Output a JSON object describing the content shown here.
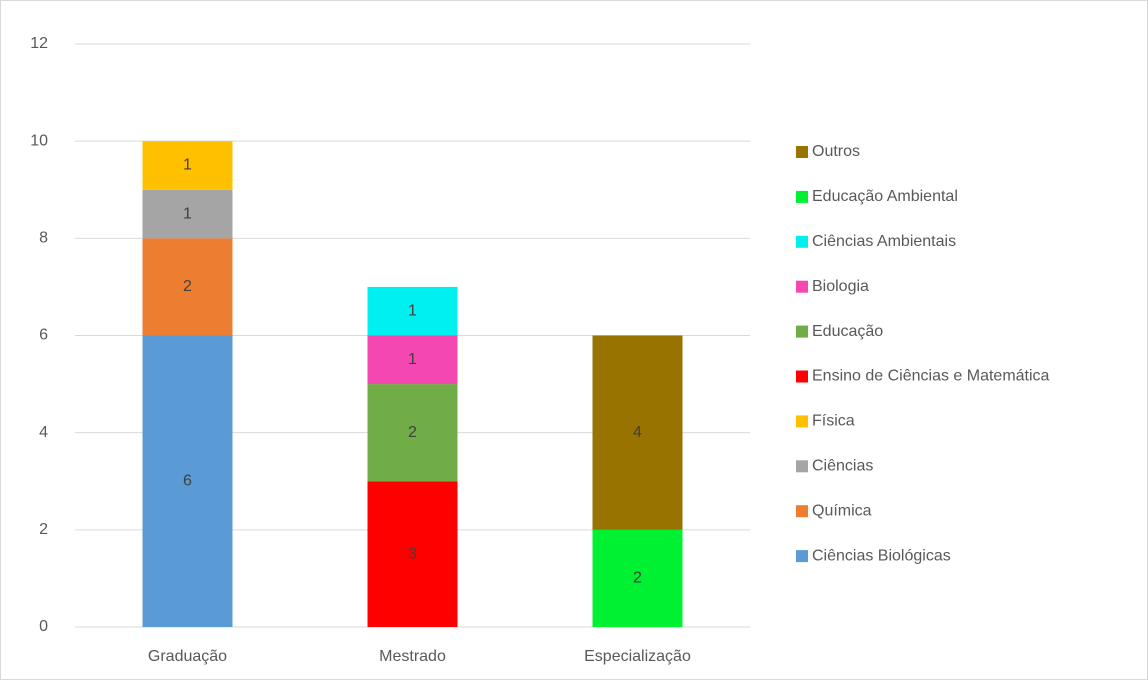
{
  "chart_data": {
    "type": "stacked_bar",
    "categories": [
      "Graduação",
      "Mestrado",
      "Especialização"
    ],
    "series": [
      {
        "name": "Ciências Biológicas",
        "color": "#5b9bd5",
        "values": [
          6,
          null,
          null
        ]
      },
      {
        "name": "Química",
        "color": "#ed7d31",
        "values": [
          2,
          null,
          null
        ]
      },
      {
        "name": "Ciências",
        "color": "#a5a5a5",
        "values": [
          1,
          null,
          null
        ]
      },
      {
        "name": "Física",
        "color": "#ffc000",
        "values": [
          1,
          null,
          null
        ]
      },
      {
        "name": "Ensino de Ciências e Matemática",
        "color": "#ff0000",
        "values": [
          null,
          3,
          null
        ]
      },
      {
        "name": "Educação",
        "color": "#70ad47",
        "values": [
          null,
          2,
          null
        ]
      },
      {
        "name": "Biologia",
        "color": "#f547b2",
        "values": [
          null,
          1,
          null
        ]
      },
      {
        "name": "Ciências Ambientais",
        "color": "#00f0f0",
        "values": [
          null,
          1,
          null
        ]
      },
      {
        "name": "Educação Ambiental",
        "color": "#00f032",
        "values": [
          null,
          null,
          2
        ]
      },
      {
        "name": "Outros",
        "color": "#997300",
        "values": [
          null,
          null,
          4
        ]
      }
    ],
    "ylim": [
      0,
      12
    ],
    "yticks": [
      0,
      2,
      4,
      6,
      8,
      10,
      12
    ],
    "grid": true,
    "legend": "right"
  }
}
